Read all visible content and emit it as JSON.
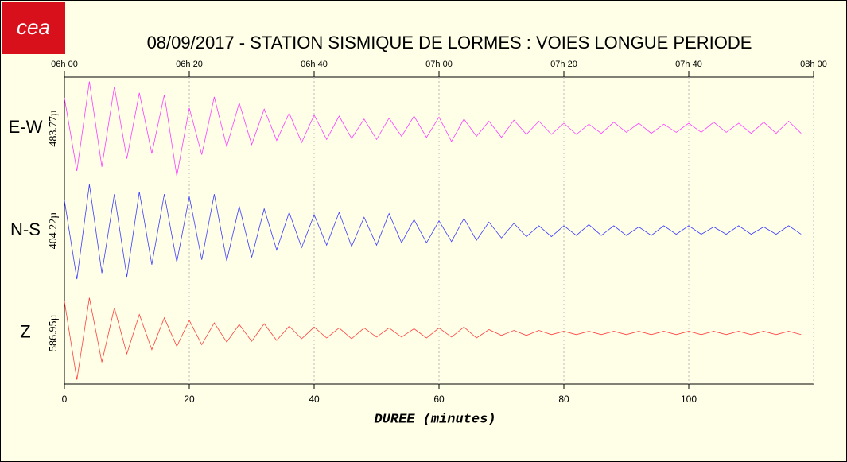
{
  "logo": "cea",
  "chart_data": {
    "type": "seismogram",
    "title": "08/09/2017  -  STATION SISMIQUE DE LORMES : VOIES LONGUE PERIODE",
    "xlabel": "DUREE (minutes)",
    "xlim": [
      0,
      120
    ],
    "xticks": [
      0,
      20,
      40,
      60,
      80,
      100
    ],
    "top_xticks": [
      {
        "value": 0,
        "label": "06h 00"
      },
      {
        "value": 20,
        "label": "06h 20"
      },
      {
        "value": 40,
        "label": "06h 40"
      },
      {
        "value": 60,
        "label": "07h 00"
      },
      {
        "value": 80,
        "label": "07h 20"
      },
      {
        "value": 100,
        "label": "07h 40"
      },
      {
        "value": 120,
        "label": "08h 00"
      }
    ],
    "grid": true,
    "x": [
      0,
      2,
      4,
      6,
      8,
      10,
      12,
      14,
      16,
      18,
      20,
      22,
      24,
      26,
      28,
      30,
      32,
      34,
      36,
      38,
      40,
      42,
      44,
      46,
      48,
      50,
      52,
      54,
      56,
      58,
      60,
      62,
      64,
      66,
      68,
      70,
      72,
      74,
      76,
      78,
      80,
      82,
      84,
      86,
      88,
      90,
      92,
      94,
      96,
      98,
      100,
      102,
      104,
      106,
      108,
      110,
      112,
      114,
      116,
      118
    ],
    "series": [
      {
        "name": "E-W",
        "color": "#ff3cff",
        "scale": {
          "value": 483.77,
          "label": "483.77µ"
        },
        "values": [
          300,
          -420,
          460,
          -380,
          410,
          -300,
          350,
          -250,
          330,
          -470,
          200,
          -260,
          310,
          -180,
          250,
          -160,
          190,
          -120,
          150,
          -140,
          130,
          -110,
          120,
          -100,
          90,
          -110,
          100,
          -80,
          120,
          -90,
          110,
          -130,
          90,
          -80,
          70,
          -90,
          80,
          -60,
          70,
          -60,
          50,
          -60,
          40,
          -50,
          60,
          -40,
          50,
          -50,
          40,
          -40,
          50,
          -40,
          60,
          -40,
          50,
          -50,
          60,
          -50,
          70,
          -50
        ]
      },
      {
        "name": "N-S",
        "color": "#3c3cff",
        "scale": {
          "value": 404.22,
          "label": "404.22µ"
        },
        "values": [
          250,
          -400,
          380,
          -350,
          300,
          -380,
          320,
          -280,
          300,
          -260,
          280,
          -240,
          300,
          -250,
          200,
          -220,
          180,
          -160,
          150,
          -140,
          130,
          -120,
          150,
          -130,
          110,
          -120,
          140,
          -100,
          90,
          -100,
          80,
          -90,
          100,
          -80,
          70,
          -60,
          60,
          -50,
          40,
          -50,
          40,
          -40,
          50,
          -40,
          40,
          -40,
          30,
          -40,
          40,
          -30,
          40,
          -30,
          30,
          -30,
          40,
          -30,
          30,
          -30,
          40,
          -30
        ]
      },
      {
        "name": "Z",
        "color": "#ff4040",
        "scale": {
          "value": 586.95,
          "label": "586.95µ"
        },
        "values": [
          380,
          -560,
          420,
          -350,
          300,
          -250,
          220,
          -200,
          180,
          -160,
          150,
          -140,
          120,
          -110,
          100,
          -100,
          110,
          -90,
          80,
          -70,
          70,
          -60,
          60,
          -70,
          60,
          -50,
          60,
          -50,
          50,
          -60,
          60,
          -50,
          70,
          -60,
          40,
          -30,
          30,
          -30,
          30,
          -20,
          20,
          -20,
          20,
          -20,
          20,
          -20,
          20,
          -20,
          20,
          -20,
          20,
          -20,
          20,
          -20,
          20,
          -20,
          20,
          -20,
          20,
          -20
        ]
      }
    ]
  }
}
